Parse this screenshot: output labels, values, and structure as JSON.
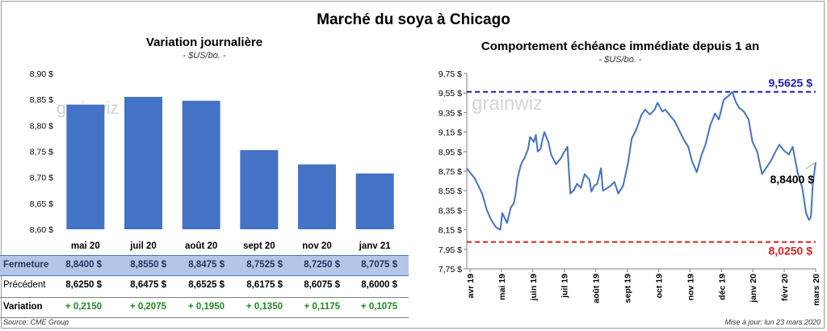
{
  "title": "Marché du soya à Chicago",
  "source": "Source: CME Group",
  "updated": "Mise à jour: lun 23 mars 2020",
  "chart_data": [
    {
      "type": "bar",
      "title": "Variation  journalière",
      "unit": "- $US/bo. -",
      "categories": [
        "mai 20",
        "juil 20",
        "août 20",
        "sept 20",
        "nov 20",
        "janv 21"
      ],
      "values": [
        8.84,
        8.855,
        8.8475,
        8.7525,
        8.725,
        8.7075
      ],
      "ylim": [
        8.6,
        8.9
      ],
      "yticks": [
        "8,60 $",
        "8,65 $",
        "8,70 $",
        "8,75 $",
        "8,80 $",
        "8,85 $",
        "8,90 $"
      ],
      "bar_color": "#4472c4",
      "watermark": "grainwiz"
    },
    {
      "type": "line",
      "title": "Comportement  échéance immédiate depuis 1 an",
      "unit": "- $US/bo. -",
      "ylim": [
        7.75,
        9.75
      ],
      "yticks": [
        "7,75 $",
        "7,95 $",
        "8,15 $",
        "8,35 $",
        "8,55 $",
        "8,75 $",
        "8,95 $",
        "9,15 $",
        "9,35 $",
        "9,55 $",
        "9,75 $"
      ],
      "xticks": [
        "avr 19",
        "mai 19",
        "juin 19",
        "juil 19",
        "août 19",
        "sept 19",
        "oct 19",
        "nov 19",
        "déc 19",
        "janv 20",
        "févr 20",
        "mars 20"
      ],
      "line_color": "#4472c4",
      "series": [
        {
          "x": [
            "2019-03-25",
            "2019-03-28",
            "2019-04-02",
            "2019-04-05",
            "2019-04-10",
            "2019-04-15",
            "2019-04-19",
            "2019-04-24",
            "2019-04-29",
            "2019-05-01",
            "2019-05-06",
            "2019-05-08",
            "2019-05-10",
            "2019-05-13",
            "2019-05-15",
            "2019-05-17",
            "2019-05-20",
            "2019-05-22",
            "2019-05-24",
            "2019-05-28",
            "2019-05-30",
            "2019-06-03",
            "2019-06-05",
            "2019-06-07",
            "2019-06-10",
            "2019-06-12",
            "2019-06-14",
            "2019-06-18",
            "2019-06-21",
            "2019-06-26",
            "2019-07-01",
            "2019-07-03",
            "2019-07-08",
            "2019-07-11",
            "2019-07-15",
            "2019-07-18",
            "2019-07-22",
            "2019-07-26",
            "2019-07-31",
            "2019-08-02",
            "2019-08-05",
            "2019-08-08",
            "2019-08-12",
            "2019-08-14",
            "2019-08-19",
            "2019-08-22",
            "2019-08-26",
            "2019-08-30",
            "2019-09-04",
            "2019-09-09",
            "2019-09-13",
            "2019-09-18",
            "2019-09-23",
            "2019-09-27",
            "2019-10-02",
            "2019-10-07",
            "2019-10-10",
            "2019-10-15",
            "2019-10-18",
            "2019-10-23",
            "2019-10-28",
            "2019-11-01",
            "2019-11-06",
            "2019-11-11",
            "2019-11-15",
            "2019-11-20",
            "2019-11-25",
            "2019-11-29",
            "2019-12-04",
            "2019-12-09",
            "2019-12-13",
            "2019-12-18",
            "2019-12-23",
            "2019-12-27",
            "2019-12-31",
            "2020-01-03",
            "2020-01-08",
            "2020-01-13",
            "2020-01-17",
            "2020-01-22",
            "2020-01-27",
            "2020-01-31",
            "2020-02-05",
            "2020-02-10",
            "2020-02-14",
            "2020-02-19",
            "2020-02-24",
            "2020-02-28",
            "2020-03-04",
            "2020-03-09",
            "2020-03-13",
            "2020-03-16",
            "2020-03-18",
            "2020-03-20",
            "2020-03-23"
          ],
          "y": [
            8.78,
            8.74,
            8.68,
            8.62,
            8.52,
            8.35,
            8.26,
            8.18,
            8.15,
            8.32,
            8.22,
            8.3,
            8.38,
            8.42,
            8.52,
            8.68,
            8.8,
            8.85,
            8.88,
            8.98,
            9.1,
            9.05,
            9.12,
            8.95,
            8.98,
            9.08,
            9.15,
            9.05,
            8.92,
            8.82,
            8.88,
            8.92,
            9.0,
            8.52,
            8.56,
            8.62,
            8.58,
            8.72,
            8.66,
            8.54,
            8.6,
            8.62,
            8.78,
            8.55,
            8.58,
            8.6,
            8.64,
            8.52,
            8.6,
            8.82,
            9.08,
            9.18,
            9.32,
            9.38,
            9.33,
            9.38,
            9.45,
            9.36,
            9.38,
            9.32,
            9.26,
            9.18,
            9.08,
            9.0,
            8.85,
            8.74,
            8.92,
            9.02,
            9.22,
            9.34,
            9.28,
            9.48,
            9.52,
            9.56,
            9.45,
            9.4,
            9.36,
            9.28,
            9.05,
            8.95,
            8.72,
            8.78,
            8.85,
            8.95,
            9.02,
            8.96,
            8.92,
            9.0,
            8.74,
            8.58,
            8.32,
            8.25,
            8.28,
            8.62,
            8.84
          ]
        }
      ],
      "reference_lines": [
        {
          "value": 9.5625,
          "label": "9,5625 $",
          "color": "#1f1fb4"
        },
        {
          "value": 8.025,
          "label": "8,0250 $",
          "color": "#e02020"
        }
      ],
      "last_label": "8,8400 $",
      "watermark": "grainwiz"
    }
  ],
  "table": {
    "contracts": [
      "mai 20",
      "juil 20",
      "août 20",
      "sept 20",
      "nov 20",
      "janv 21"
    ],
    "rows": {
      "close": {
        "label": "Fermeture",
        "values": [
          "8,8400  $",
          "8,8550  $",
          "8,8475  $",
          "8,7525  $",
          "8,7250  $",
          "8,7075  $"
        ]
      },
      "previous": {
        "label": "Précédent",
        "values": [
          "8,6250  $",
          "8,6475  $",
          "8,6525  $",
          "8,6175  $",
          "8,6075  $",
          "8,6000  $"
        ]
      },
      "variation": {
        "label": "Variation",
        "values": [
          "+ 0,2150",
          "+ 0,2075",
          "+ 0,1950",
          "+ 0,1350",
          "+ 0,1175",
          "+ 0,1075"
        ]
      }
    }
  }
}
